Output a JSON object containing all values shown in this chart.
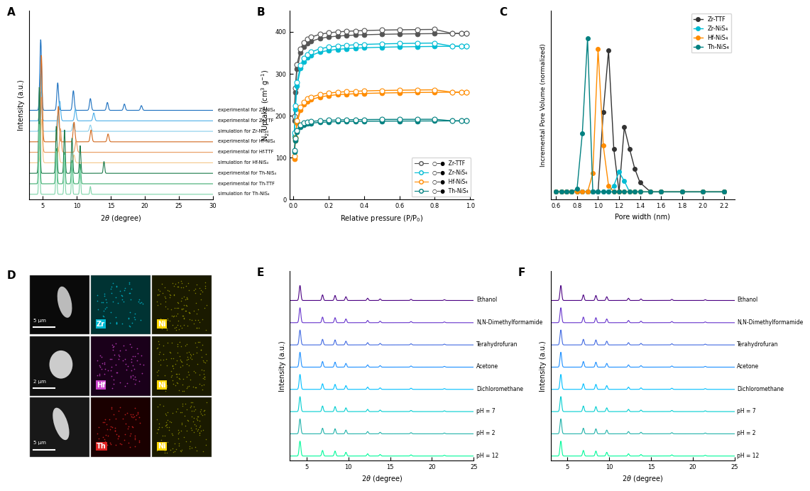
{
  "panel_A_labels": [
    "experimental for Zr-NiS₄",
    "experimental for Zr-TTF",
    "simulation for Zr-NiS₄",
    "experimental for Hf-NiS₄",
    "experimental for Hf-TTF",
    "simulation for Hf-NiS₄",
    "experimental for Th-NiS₄",
    "experimental for Th-TTF",
    "simulation for Th-NiS₄"
  ],
  "panel_A_colors": [
    "#1A6FBF",
    "#4BAEE8",
    "#87CEEB",
    "#D2691E",
    "#E8975A",
    "#F5C88A",
    "#1B7A4A",
    "#3DAB6E",
    "#7DD4A8"
  ],
  "panel_B_legend": [
    "Zr-TTF",
    "Zr-NiS₄",
    "Hf-NiS₄",
    "Th-NiS₄"
  ],
  "panel_B_colors": [
    "#555555",
    "#00BCD4",
    "#FF8C00",
    "#008080"
  ],
  "panel_C_legend": [
    "Zr-TTF",
    "Zr-NiS₄",
    "Hf-NiS₄",
    "Th-NiS₄"
  ],
  "panel_C_colors": [
    "#333333",
    "#00BCD4",
    "#FF8C00",
    "#008080"
  ],
  "panel_E_labels": [
    "Ethanol",
    "N,N-Dimethylformamide",
    "Terahydrofuran",
    "Acetone",
    "Dichloromethane",
    "pH = 7",
    "pH = 2",
    "pH = 12"
  ],
  "panel_F_labels": [
    "Ethanol",
    "N,N-Dimethylformamide",
    "Terahydrofuran",
    "Acetone",
    "Dichloromethane",
    "pH = 7",
    "pH = 2",
    "pH = 12"
  ],
  "ef_colors": [
    "#4B0082",
    "#6633CC",
    "#4169E1",
    "#1E90FF",
    "#00BFFF",
    "#00CED1",
    "#20B2AA",
    "#00FA9A"
  ],
  "bg_color": "#FFFFFF"
}
